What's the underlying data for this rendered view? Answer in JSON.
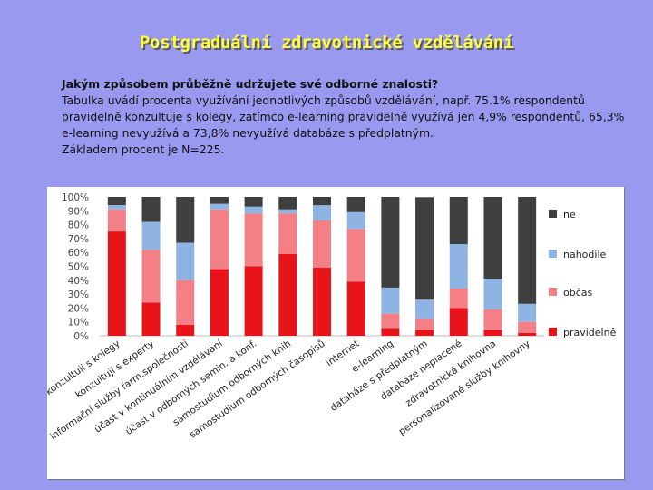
{
  "slide": {
    "title": "Postgraduální zdravotnické vzdělávání",
    "question": "Jakým způsobem průběžně udržujete své odborné znalosti?",
    "description": "Tabulka uvádí procenta využívání jednotlivých způsobů vzdělávání,  např. 75.1% respondentů pravidelně konzultuje s kolegy, zatímco e-learning pravidelně využívá jen 4,9% respondentů, 65,3%  e-learning nevyužívá a 73,8% nevyužívá databáze s předplatným.",
    "base_note": "Základem procent je N=225."
  },
  "chart_data": {
    "type": "bar",
    "stacked": true,
    "ylim": [
      0,
      100
    ],
    "yticks": [
      "0%",
      "10%",
      "20%",
      "30%",
      "40%",
      "50%",
      "60%",
      "70%",
      "80%",
      "90%",
      "100%"
    ],
    "grid": false,
    "legend_position": "right",
    "categories": [
      "konzultuji s kolegy",
      "konzultuji s experty",
      "informační služby farm.společnosti",
      "účast v kontinuálním vzdělávání",
      "účast v odborných semin. a konf.",
      "samostudium odborných knih",
      "samostudium odborných časopisů",
      "internet",
      "e-learning",
      "databáze s předplatným",
      "databáze neplacené",
      "zdravotnická knihovna",
      "personalizované služby knihovny"
    ],
    "series": [
      {
        "name": "pravidelně",
        "color": "#e8141a",
        "values": [
          75.1,
          24,
          8,
          48,
          50,
          59,
          49,
          39,
          4.9,
          4,
          20,
          4,
          2
        ]
      },
      {
        "name": "občas",
        "color": "#f47f86",
        "values": [
          16,
          38,
          32,
          43,
          38,
          29,
          34,
          38,
          11,
          8,
          14,
          15,
          8
        ]
      },
      {
        "name": "nahodile",
        "color": "#8eb4e3",
        "values": [
          3,
          20,
          27,
          4,
          5,
          3,
          11,
          12,
          18.8,
          14,
          32,
          22,
          13
        ]
      },
      {
        "name": "ne",
        "color": "#3f3f3f",
        "values": [
          5.9,
          18,
          33,
          5,
          7,
          9,
          6,
          11,
          65.3,
          73.8,
          34,
          59,
          77
        ]
      }
    ]
  }
}
